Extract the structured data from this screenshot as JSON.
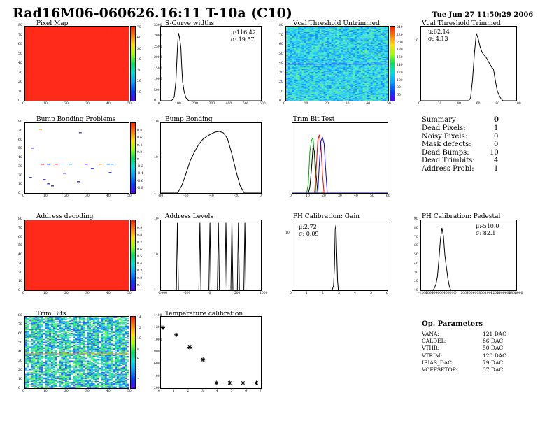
{
  "header": {
    "title": "Rad16M06-060626.16:11 T-10a (C10)",
    "date": "Tue Jun 27 11:50:29 2006"
  },
  "panels": {
    "pixel_map": {
      "title": "Pixel Map",
      "palette_ticks": [
        "70",
        "60",
        "50",
        "40",
        "30",
        "20",
        "10"
      ]
    },
    "scurve": {
      "title": "S-Curve widths",
      "mean": "μ:116.42",
      "sigma": "σ: 19.57"
    },
    "vcal_untrimmed": {
      "title": "Vcal Threshold Untrimmed",
      "palette_ticks": [
        "240",
        "220",
        "200",
        "180",
        "160",
        "140",
        "120",
        "100",
        "80",
        "60"
      ]
    },
    "vcal_trimmed": {
      "title": "Vcal Threshold Trimmed",
      "mean": "μ:62.14",
      "sigma": "σ: 4.13"
    },
    "bump_problems": {
      "title": "Bump Bonding Problems",
      "palette_ticks": [
        "1",
        "0.8",
        "0.6",
        "0.4",
        "0.2",
        "0",
        "-0.2",
        "-0.4",
        "-0.6",
        "-0.8"
      ]
    },
    "bump_bonding": {
      "title": "Bump Bonding"
    },
    "trim_bit_test": {
      "title": "Trim Bit Test"
    },
    "address_decoding": {
      "title": "Address decoding",
      "palette_ticks": [
        "1",
        "0.9",
        "0.8",
        "0.7",
        "0.6",
        "0.5",
        "0.4",
        "0.3",
        "0.2",
        "0.1"
      ]
    },
    "address_levels": {
      "title": "Address Levels"
    },
    "ph_gain": {
      "title": "PH Calibration: Gain",
      "mean": "μ:2.72",
      "sigma": "σ: 0.09"
    },
    "ph_pedestal": {
      "title": "PH Calibration: Pedestal",
      "mean": "μ:-510.0",
      "sigma": "σ: 82.1"
    },
    "trim_bits": {
      "title": "Trim Bits",
      "palette_ticks": [
        "14",
        "12",
        "10",
        "8",
        "6",
        "4",
        "2"
      ]
    },
    "temperature": {
      "title": "Temperature calibration"
    }
  },
  "summary": {
    "title": "Summary",
    "total": "0",
    "rows": [
      {
        "label": "Dead Pixels:",
        "value": "1"
      },
      {
        "label": "Noisy Pixels:",
        "value": "0"
      },
      {
        "label": "Mask defects:",
        "value": "0"
      },
      {
        "label": "Dead Bumps:",
        "value": "10"
      },
      {
        "label": "Dead Trimbits:",
        "value": "4"
      },
      {
        "label": "Address Probl:",
        "value": "1"
      }
    ]
  },
  "op_parameters": {
    "title": "Op. Parameters",
    "rows": [
      {
        "label": "VANA:",
        "value": "121 DAC"
      },
      {
        "label": "CALDEL:",
        "value": "86 DAC"
      },
      {
        "label": "VTHR:",
        "value": "50 DAC"
      },
      {
        "label": "VTRIM:",
        "value": "120 DAC"
      },
      {
        "label": "IBIAS_DAC:",
        "value": "79 DAC"
      },
      {
        "label": "VOFFSETOP:",
        "value": "37 DAC"
      }
    ]
  },
  "chart_data": [
    {
      "id": "pixel_map",
      "type": "heatmap",
      "xlim": [
        0,
        52
      ],
      "ylim": [
        0,
        80
      ],
      "x_ticks": [
        "0",
        "10",
        "20",
        "30",
        "40",
        "50"
      ],
      "y_ticks": [
        "0",
        "10",
        "20",
        "30",
        "40",
        "50",
        "60",
        "70",
        "80"
      ],
      "fill_color": "#ff2a1a"
    },
    {
      "id": "scurve",
      "type": "line",
      "xlim": [
        0,
        600
      ],
      "ylim": [
        0,
        3500
      ],
      "x_ticks": [
        "0",
        "100",
        "200",
        "300",
        "400",
        "500",
        "600"
      ],
      "y_ticks": [
        "0",
        "500",
        "1000",
        "1500",
        "2000",
        "2500",
        "3000",
        "3500"
      ],
      "x": [
        0,
        60,
        70,
        80,
        90,
        100,
        105,
        110,
        115,
        120,
        125,
        130,
        140,
        150,
        160,
        170,
        600
      ],
      "y": [
        0,
        0,
        50,
        200,
        900,
        2600,
        3200,
        3050,
        2800,
        2500,
        1600,
        900,
        400,
        150,
        50,
        0,
        0
      ]
    },
    {
      "id": "vcal_untrimmed",
      "type": "heatmap",
      "xlim": [
        0,
        52
      ],
      "ylim": [
        0,
        80
      ],
      "x_ticks": [
        "0",
        "10",
        "20",
        "30",
        "40",
        "50"
      ],
      "y_ticks": [
        "0",
        "10",
        "20",
        "30",
        "40",
        "50",
        "60",
        "70",
        "80"
      ]
    },
    {
      "id": "vcal_trimmed",
      "type": "line",
      "xlim": [
        0,
        100
      ],
      "ylim": [
        0,
        1100
      ],
      "x_ticks": [
        "0",
        "20",
        "40",
        "60",
        "80",
        "100"
      ],
      "y_ticks": [
        "10"
      ],
      "x": [
        0,
        50,
        52,
        54,
        56,
        58,
        60,
        62,
        64,
        66,
        68,
        70,
        72,
        74,
        76,
        78,
        80,
        82,
        84,
        86,
        100
      ],
      "y": [
        0,
        0,
        40,
        300,
        700,
        1000,
        920,
        800,
        720,
        680,
        650,
        600,
        550,
        500,
        470,
        300,
        150,
        80,
        30,
        0,
        0
      ]
    },
    {
      "id": "bump_problems",
      "type": "heatmap",
      "xlim": [
        0,
        52
      ],
      "ylim": [
        0,
        80
      ],
      "x_ticks": [
        "0",
        "10",
        "20",
        "30",
        "40",
        "50"
      ],
      "y_ticks": [
        "0",
        "10",
        "20",
        "30",
        "40",
        "50",
        "60",
        "70",
        "80"
      ]
    },
    {
      "id": "bump_bonding",
      "type": "line",
      "log_y": true,
      "xlim": [
        -100,
        20
      ],
      "ylim": [
        1,
        700
      ],
      "x_ticks": [
        "-80",
        "-60",
        "-40",
        "-20",
        "0"
      ],
      "y_ticks": [
        "1",
        "10",
        "10²"
      ],
      "x": [
        -100,
        -80,
        -75,
        -70,
        -65,
        -60,
        -55,
        -50,
        -45,
        -40,
        -35,
        -30,
        -25,
        -20,
        -15,
        -10,
        -5,
        0,
        20
      ],
      "y": [
        1,
        1,
        2,
        6,
        20,
        45,
        90,
        150,
        200,
        250,
        300,
        320,
        280,
        160,
        40,
        8,
        2,
        1,
        1
      ]
    },
    {
      "id": "trim_bit_test",
      "type": "line",
      "xlim": [
        0,
        60
      ],
      "ylim": [
        0,
        1200
      ],
      "x_ticks": [
        "0",
        "10",
        "20",
        "30",
        "40",
        "50",
        "60"
      ],
      "y_ticks": [],
      "series_colors": [
        "#00aa00",
        "#000000",
        "#ff0000",
        "#0000ff"
      ],
      "series_x": [
        [
          0,
          9,
          10,
          11,
          12,
          13,
          14,
          15,
          60
        ],
        [
          0,
          10,
          11,
          12,
          13,
          14,
          15,
          16,
          60
        ],
        [
          0,
          14,
          15,
          16,
          17,
          18,
          19,
          20,
          60
        ],
        [
          0,
          16,
          17,
          18,
          19,
          20,
          21,
          22,
          60
        ]
      ],
      "series_y": [
        [
          0,
          0,
          150,
          700,
          900,
          950,
          600,
          0,
          0
        ],
        [
          0,
          0,
          100,
          400,
          800,
          700,
          300,
          0,
          0
        ],
        [
          0,
          0,
          400,
          900,
          1000,
          800,
          300,
          0,
          0
        ],
        [
          0,
          0,
          500,
          900,
          950,
          850,
          400,
          0,
          0
        ]
      ]
    },
    {
      "id": "address_decoding",
      "type": "heatmap",
      "xlim": [
        0,
        52
      ],
      "ylim": [
        0,
        80
      ],
      "x_ticks": [
        "0",
        "10",
        "20",
        "30",
        "40",
        "50"
      ],
      "y_ticks": [
        "0",
        "10",
        "20",
        "30",
        "40",
        "50",
        "60",
        "70",
        "80"
      ],
      "fill_color": "#ff2a1a"
    },
    {
      "id": "address_levels",
      "type": "line",
      "log_y": true,
      "xlim": [
        -1000,
        1000
      ],
      "ylim": [
        1,
        500
      ],
      "x_ticks": [
        "-1000",
        "-500",
        "0",
        "500",
        "1000"
      ],
      "y_ticks": [
        "1",
        "10",
        "10²"
      ],
      "peaks_x": [
        -670,
        -220,
        -20,
        150,
        300,
        420,
        550,
        680
      ],
      "peak_height": 400
    },
    {
      "id": "ph_gain",
      "type": "line",
      "xlim": [
        0,
        6
      ],
      "ylim": [
        0,
        600
      ],
      "x_ticks": [
        "0",
        "1",
        "2",
        "3",
        "4",
        "5",
        "6"
      ],
      "y_ticks": [
        "10"
      ],
      "x": [
        0,
        2.5,
        2.6,
        2.65,
        2.7,
        2.75,
        2.8,
        2.85,
        2.9,
        6
      ],
      "y": [
        0,
        0,
        40,
        200,
        520,
        560,
        300,
        80,
        0,
        0
      ]
    },
    {
      "id": "ph_pedestal",
      "type": "line",
      "xlim": [
        -1200,
        2000
      ],
      "ylim": [
        0,
        90
      ],
      "x_ticks": [
        "-1200",
        "-1000",
        "-800",
        "-600",
        "-400",
        "-200",
        "0",
        "200",
        "400",
        "600",
        "800",
        "1000",
        "1200",
        "1400",
        "1600",
        "1800",
        "2000"
      ],
      "y_ticks": [
        "10",
        "20",
        "30",
        "40",
        "50",
        "60",
        "70",
        "80",
        "90"
      ],
      "x": [
        -1200,
        -800,
        -750,
        -700,
        -650,
        -600,
        -550,
        -500,
        -450,
        -400,
        -350,
        -300,
        -250,
        -200,
        2000
      ],
      "y": [
        0,
        0,
        3,
        8,
        18,
        40,
        65,
        80,
        70,
        45,
        30,
        15,
        5,
        0,
        0
      ]
    },
    {
      "id": "trim_bits",
      "type": "heatmap",
      "xlim": [
        0,
        52
      ],
      "ylim": [
        0,
        80
      ],
      "x_ticks": [
        "0",
        "10",
        "20",
        "30",
        "40",
        "50"
      ],
      "y_ticks": [
        "0",
        "10",
        "20",
        "30",
        "40",
        "50",
        "60",
        "70",
        "80"
      ]
    },
    {
      "id": "temperature",
      "type": "scatter",
      "xlim": [
        0,
        7.5
      ],
      "ylim": [
        0,
        1500
      ],
      "x_ticks": [
        "0",
        "1",
        "2",
        "3",
        "4",
        "5",
        "6",
        "7"
      ],
      "y_ticks": [
        "200",
        "400",
        "600",
        "800",
        "1000",
        "1200",
        "1400"
      ],
      "x": [
        0,
        1,
        2,
        3,
        4,
        5,
        6,
        7
      ],
      "y": [
        1270,
        1120,
        860,
        600,
        110,
        110,
        110,
        110
      ]
    }
  ]
}
